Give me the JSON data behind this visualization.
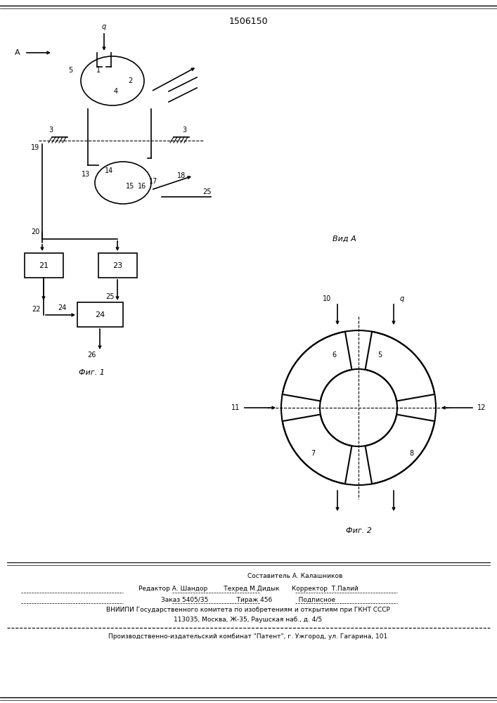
{
  "title": "1506150",
  "bg_color": "#ffffff",
  "fig1_label": "Фиг. 1",
  "fig2_label": "Фиг. 2",
  "vid_label": "Вид А",
  "footer_lines": [
    "Составитель А. Калашников",
    "Редактор А. Шандор        Техред М.Дидык      Корректор  Т.Палий",
    "Заказ 5405/35              Тираж 456             Подписное",
    "ВНИИПИ Государственного комитета по изобретениям и открытиям при ГКНТ СССР",
    "113035, Москва, Ж-35, Раушская наб., д. 4/5",
    "Производственно-издательский комбинат \"Патент\", г. Ужгород, ул. Гагарина, 101"
  ]
}
